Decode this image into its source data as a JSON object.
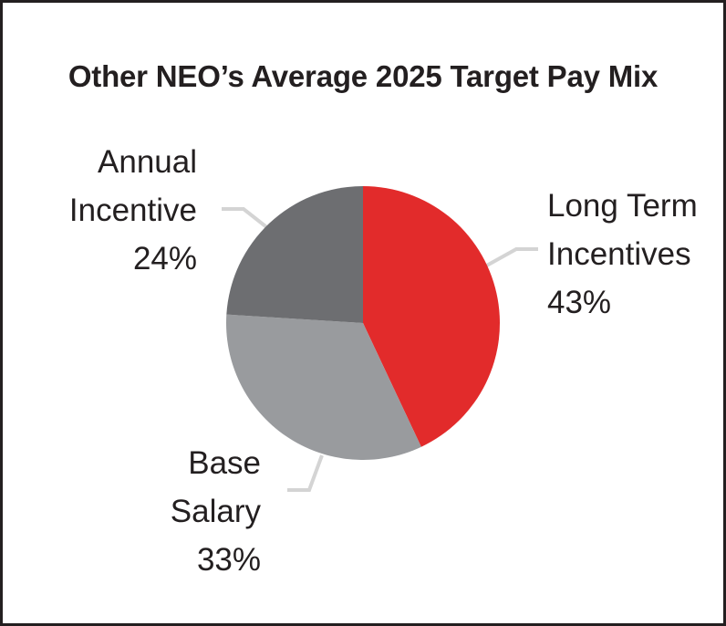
{
  "chart_data": {
    "type": "pie",
    "title": "Other NEO’s Average 2025 Target Pay Mix",
    "slices": [
      {
        "label_lines": [
          "Long Term",
          "Incentives"
        ],
        "value": 43,
        "value_text": "43%",
        "color": "#e22b2b"
      },
      {
        "label_lines": [
          "Base",
          "Salary"
        ],
        "value": 33,
        "value_text": "33%",
        "color": "#999b9e"
      },
      {
        "label_lines": [
          "Annual",
          "Incentive"
        ],
        "value": 24,
        "value_text": "24%",
        "color": "#6d6e71"
      }
    ],
    "start_angle": "12 o'clock",
    "direction": "clockwise",
    "legend": "none",
    "leader_line_color": "#d4d4d4"
  }
}
